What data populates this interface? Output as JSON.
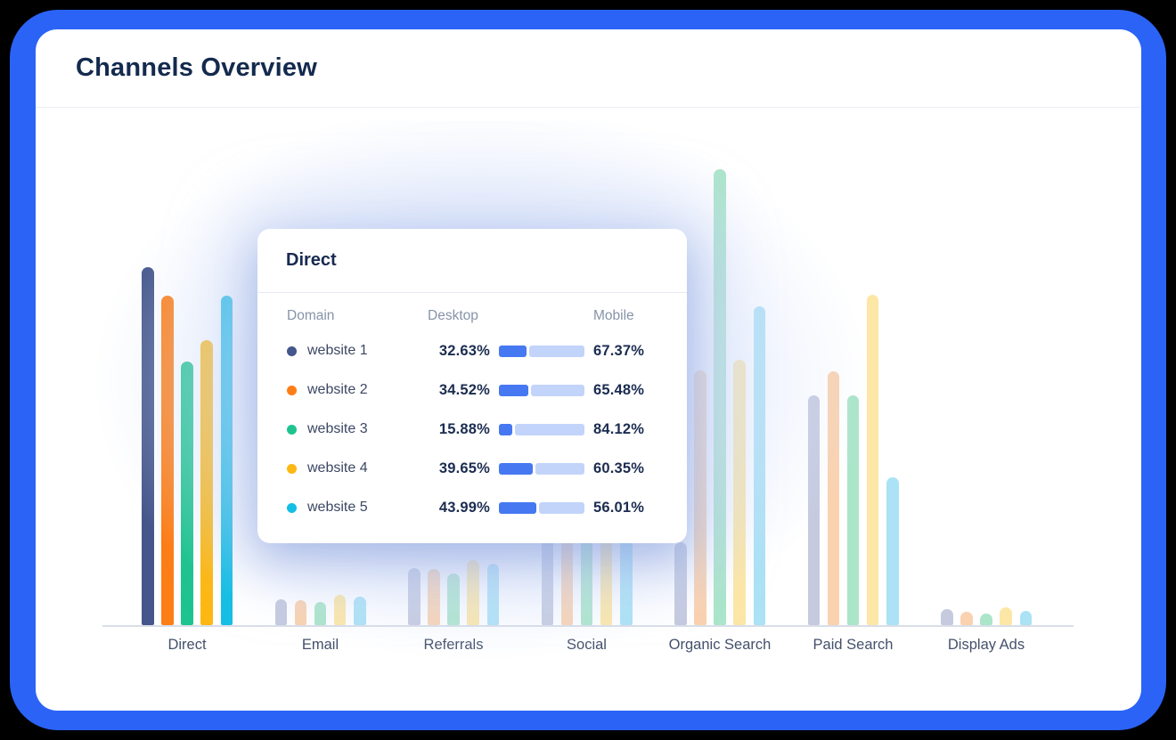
{
  "window": {
    "frame_color": "#2B63F7",
    "background_color": "#000000"
  },
  "header": {
    "title": "Channels Overview"
  },
  "tooltip": {
    "title": "Direct",
    "columns": {
      "domain": "Domain",
      "desktop": "Desktop",
      "mobile": "Mobile"
    },
    "rows": [
      {
        "label": "website 1",
        "dot_color": "#44568B",
        "desktop": "32.63%",
        "desktop_pct": 32.63,
        "mobile": "67.37%"
      },
      {
        "label": "website 2",
        "dot_color": "#FD7E17",
        "desktop": "34.52%",
        "desktop_pct": 34.52,
        "mobile": "65.48%"
      },
      {
        "label": "website 3",
        "dot_color": "#1FC38F",
        "desktop": "15.88%",
        "desktop_pct": 15.88,
        "mobile": "84.12%"
      },
      {
        "label": "website 4",
        "dot_color": "#FDB813",
        "desktop": "39.65%",
        "desktop_pct": 39.65,
        "mobile": "60.35%"
      },
      {
        "label": "website 5",
        "dot_color": "#15BEE4",
        "desktop": "43.99%",
        "desktop_pct": 43.99,
        "mobile": "56.01%"
      }
    ],
    "bar_fill_color": "#4678F2",
    "bar_track_color": "#C3D4FB"
  },
  "chart_data": {
    "type": "bar",
    "title": "Channels Overview",
    "categories": [
      "Direct",
      "Email",
      "Referrals",
      "Social",
      "Organic Search",
      "Paid Search",
      "Display Ads"
    ],
    "highlighted_category": "Direct",
    "value_unit": "bar height in px (chart shows no y-axis or tick values)",
    "series": [
      {
        "name": "website 1",
        "color": "#44568B",
        "faded_color": "#C5CADF",
        "values": [
          402,
          29,
          64,
          150,
          93,
          258,
          18
        ]
      },
      {
        "name": "website 2",
        "color": "#FD7E17",
        "faded_color": "#FAD2B0",
        "values": [
          370,
          28,
          63,
          148,
          286,
          285,
          15
        ]
      },
      {
        "name": "website 3",
        "color": "#1FC38F",
        "faded_color": "#ABE5CA",
        "values": [
          296,
          26,
          58,
          145,
          512,
          258,
          13
        ]
      },
      {
        "name": "website 4",
        "color": "#FDB813",
        "faded_color": "#FDE7A6",
        "values": [
          320,
          34,
          73,
          158,
          298,
          371,
          20
        ]
      },
      {
        "name": "website 5",
        "color": "#15BEE4",
        "faded_color": "#ABE2F5",
        "values": [
          370,
          32,
          69,
          152,
          358,
          166,
          16
        ]
      }
    ],
    "grid": false,
    "legend_position": "none",
    "note": "Social group bar tops are occluded by the Direct tooltip; those heights are estimated."
  }
}
